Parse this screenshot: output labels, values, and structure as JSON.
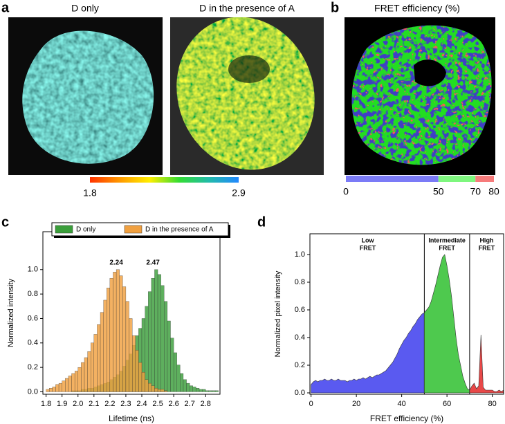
{
  "panels": {
    "labels": [
      "a",
      "b",
      "c",
      "d"
    ]
  },
  "images": [
    {
      "title": "D only"
    },
    {
      "title": "D in the presence of A"
    },
    {
      "title": "FRET efficiency (%)"
    }
  ],
  "lifetime_colorbar": {
    "lim": [
      1.8,
      2.9
    ],
    "ticks": [
      1.8,
      2.9
    ],
    "colors": [
      "#ff3300",
      "#ff9900",
      "#ffee00",
      "#33dd33",
      "#22bbaa",
      "#2288ff"
    ]
  },
  "fret_colorbar": {
    "lim": [
      0,
      80
    ],
    "ticks": [
      0,
      50,
      70,
      80
    ],
    "colors": [
      "#7b7bf7",
      "#7ef77e",
      "#f77b7b"
    ]
  },
  "chart_data": [
    {
      "type": "histogram",
      "x_label": "Lifetime (ns)",
      "y_label": "Normalized intensity",
      "bins": [
        1.8,
        1.82,
        1.84,
        1.86,
        1.88,
        1.9,
        1.92,
        1.94,
        1.96,
        1.98,
        2.0,
        2.02,
        2.04,
        2.06,
        2.08,
        2.1,
        2.12,
        2.14,
        2.16,
        2.18,
        2.2,
        2.22,
        2.24,
        2.26,
        2.28,
        2.3,
        2.32,
        2.34,
        2.36,
        2.38,
        2.4,
        2.42,
        2.44,
        2.46,
        2.48,
        2.5,
        2.52,
        2.54,
        2.56,
        2.58,
        2.6,
        2.62,
        2.64,
        2.66,
        2.68,
        2.7,
        2.72,
        2.74,
        2.76,
        2.78,
        2.8,
        2.82,
        2.84,
        2.86,
        2.88,
        2.9
      ],
      "series": [
        {
          "name": "D only",
          "color": "#3a9e3a",
          "peak": 2.47,
          "values": [
            0,
            0,
            0,
            0,
            0,
            0,
            0,
            0,
            0.01,
            0.01,
            0.01,
            0.02,
            0.02,
            0.03,
            0.03,
            0.04,
            0.05,
            0.06,
            0.07,
            0.08,
            0.1,
            0.12,
            0.14,
            0.17,
            0.21,
            0.26,
            0.31,
            0.38,
            0.46,
            0.52,
            0.6,
            0.7,
            0.82,
            0.93,
            1.0,
            0.96,
            0.87,
            0.74,
            0.58,
            0.44,
            0.32,
            0.22,
            0.15,
            0.1,
            0.07,
            0.05,
            0.04,
            0.03,
            0.02,
            0.02,
            0.01,
            0.01,
            0.01,
            0.01,
            0
          ]
        },
        {
          "name": "D in the presence of A",
          "color": "#f0a040",
          "peak": 2.24,
          "values": [
            0.02,
            0.03,
            0.04,
            0.06,
            0.07,
            0.09,
            0.11,
            0.13,
            0.15,
            0.17,
            0.2,
            0.24,
            0.28,
            0.33,
            0.4,
            0.47,
            0.55,
            0.65,
            0.75,
            0.85,
            0.93,
            0.98,
            1.0,
            0.95,
            0.86,
            0.74,
            0.6,
            0.46,
            0.34,
            0.24,
            0.16,
            0.1,
            0.07,
            0.05,
            0.03,
            0.02,
            0.02,
            0.01,
            0,
            0,
            0,
            0,
            0,
            0,
            0,
            0,
            0,
            0,
            0,
            0,
            0,
            0,
            0,
            0,
            0
          ]
        }
      ],
      "xlim": [
        1.78,
        2.89
      ],
      "xticks": [
        1.8,
        1.9,
        {
          "value": 2,
          "label": "2.0"
        },
        2.1,
        2.2,
        2.3,
        2.4,
        2.5,
        2.6,
        2.7,
        2.8
      ],
      "ylim": [
        -0.02,
        1.31
      ],
      "yticks": [
        {
          "value": 0,
          "label": "0.0"
        },
        0.2,
        0.4,
        0.6,
        0.8,
        {
          "value": 1,
          "label": "1.0"
        }
      ],
      "legend": "top"
    },
    {
      "type": "area",
      "x_label": "FRET efficiency (%)",
      "y_label": "Normalized pixel intensity",
      "x": [
        0,
        1,
        2,
        3,
        4,
        5,
        6,
        7,
        8,
        9,
        10,
        11,
        12,
        13,
        14,
        15,
        16,
        17,
        18,
        19,
        20,
        21,
        22,
        23,
        24,
        25,
        26,
        27,
        28,
        29,
        30,
        31,
        32,
        33,
        34,
        35,
        36,
        37,
        38,
        39,
        40,
        41,
        42,
        43,
        44,
        45,
        46,
        47,
        48,
        49,
        50,
        51,
        52,
        53,
        54,
        55,
        56,
        57,
        58,
        59,
        60,
        61,
        62,
        63,
        64,
        65,
        66,
        67,
        68,
        69,
        70,
        71,
        72,
        73,
        74,
        75,
        76,
        77,
        78,
        79,
        80,
        81,
        82,
        83,
        84,
        85
      ],
      "values": [
        0.06,
        0.08,
        0.09,
        0.08,
        0.09,
        0.09,
        0.1,
        0.09,
        0.09,
        0.1,
        0.09,
        0.09,
        0.1,
        0.09,
        0.09,
        0.09,
        0.08,
        0.09,
        0.09,
        0.1,
        0.09,
        0.1,
        0.1,
        0.11,
        0.1,
        0.11,
        0.12,
        0.11,
        0.12,
        0.13,
        0.13,
        0.14,
        0.15,
        0.16,
        0.18,
        0.2,
        0.22,
        0.25,
        0.28,
        0.32,
        0.35,
        0.38,
        0.4,
        0.43,
        0.45,
        0.48,
        0.5,
        0.53,
        0.55,
        0.57,
        0.58,
        0.6,
        0.62,
        0.66,
        0.72,
        0.78,
        0.85,
        0.92,
        0.98,
        1.0,
        0.92,
        0.82,
        0.7,
        0.55,
        0.4,
        0.28,
        0.2,
        0.12,
        0.07,
        0.03,
        0.02,
        0.05,
        0.07,
        0.03,
        0.05,
        0.42,
        0.04,
        0.02,
        0.02,
        0.02,
        0.02,
        0.01,
        0.01,
        0.02,
        0.01,
        0.02
      ],
      "regions": [
        {
          "label_lines": [
            "Low",
            "FRET"
          ],
          "range": [
            0,
            50
          ],
          "color": "#5a5af0"
        },
        {
          "label_lines": [
            "Intermediate",
            "FRET"
          ],
          "range": [
            50,
            70
          ],
          "color": "#4ec94e"
        },
        {
          "label_lines": [
            "High",
            "FRET"
          ],
          "range": [
            70,
            85
          ],
          "color": "#e84848"
        }
      ],
      "xlim": [
        -0.5,
        85
      ],
      "xticks": [
        0,
        20,
        40,
        60,
        80
      ],
      "ylim": [
        -0.01,
        1.15
      ],
      "yticks": [
        {
          "value": 0,
          "label": "0.0"
        },
        0.2,
        0.4,
        0.6,
        0.8,
        {
          "value": 1,
          "label": "1.0"
        }
      ]
    }
  ]
}
